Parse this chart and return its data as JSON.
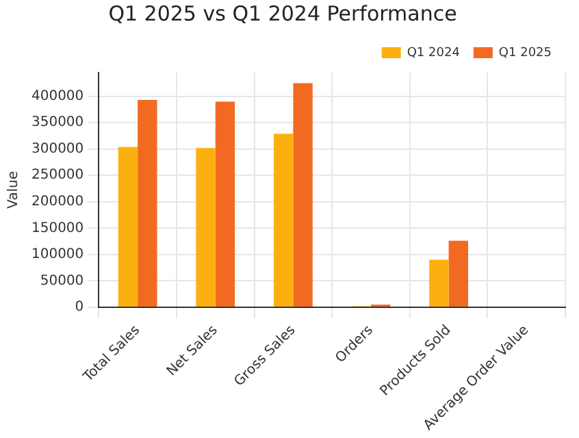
{
  "chart_data": {
    "type": "bar",
    "title": "Q1 2025 vs Q1 2024 Performance",
    "ylabel": "Value",
    "categories": [
      "Total Sales",
      "Net Sales",
      "Gross Sales",
      "Orders",
      "Products Sold",
      "Average Order Value"
    ],
    "series": [
      {
        "name": "Q1 2024",
        "color": "#fcb010",
        "values": [
          304000,
          302000,
          329000,
          2000,
          90000,
          0
        ]
      },
      {
        "name": "Q1 2025",
        "color": "#f26a22",
        "values": [
          393000,
          390000,
          425000,
          5000,
          126000,
          0
        ]
      }
    ],
    "ylim": [
      0,
      445000
    ],
    "yticks": [
      0,
      50000,
      100000,
      150000,
      200000,
      250000,
      300000,
      350000,
      400000
    ],
    "grid": true,
    "legend": "top right"
  }
}
